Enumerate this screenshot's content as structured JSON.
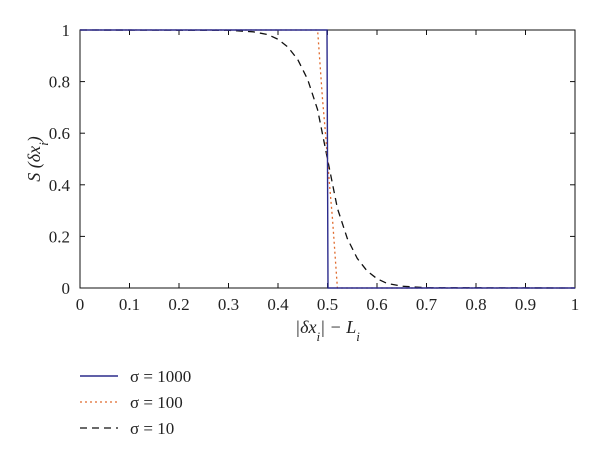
{
  "chart_data": {
    "type": "line",
    "xlabel": "|δx_i| − L_i",
    "ylabel": "S (δx_i)",
    "xlim": [
      0,
      1
    ],
    "ylim": [
      0,
      1
    ],
    "x_ticks": [
      0,
      0.1,
      0.2,
      0.3,
      0.4,
      0.5,
      0.6,
      0.7,
      0.8,
      0.9,
      1
    ],
    "y_ticks": [
      0,
      0.2,
      0.4,
      0.6,
      0.8,
      1
    ],
    "x_tick_labels": [
      "0",
      "0.1",
      "0.2",
      "0.3",
      "0.4",
      "0.5",
      "0.6",
      "0.7",
      "0.8",
      "0.9",
      "1"
    ],
    "y_tick_labels": [
      "0",
      "0.2",
      "0.4",
      "0.6",
      "0.8",
      "1"
    ],
    "grid": false,
    "legend_position": "below-left",
    "series": [
      {
        "name": "σ = 1000",
        "color": "#2b2b8c",
        "style": "solid",
        "x": [
          0,
          0.499,
          0.5,
          0.501,
          1
        ],
        "y": [
          1,
          1,
          0.5,
          0,
          0
        ]
      },
      {
        "name": "σ = 100",
        "color": "#e06a2c",
        "style": "dotted",
        "x": [
          0,
          0.48,
          0.49,
          0.495,
          0.5,
          0.505,
          0.51,
          0.52,
          1
        ],
        "y": [
          1,
          1,
          0.73,
          0.62,
          0.5,
          0.38,
          0.27,
          0,
          0
        ]
      },
      {
        "name": "σ = 10",
        "color": "#111111",
        "style": "dashed",
        "x": [
          0,
          0.3,
          0.35,
          0.38,
          0.4,
          0.42,
          0.44,
          0.46,
          0.48,
          0.5,
          0.52,
          0.54,
          0.56,
          0.58,
          0.6,
          0.62,
          0.65,
          0.7,
          1
        ],
        "y": [
          1,
          0.999,
          0.993,
          0.982,
          0.964,
          0.934,
          0.885,
          0.808,
          0.691,
          0.5,
          0.309,
          0.192,
          0.115,
          0.066,
          0.036,
          0.018,
          0.007,
          0.001,
          0
        ]
      }
    ]
  }
}
